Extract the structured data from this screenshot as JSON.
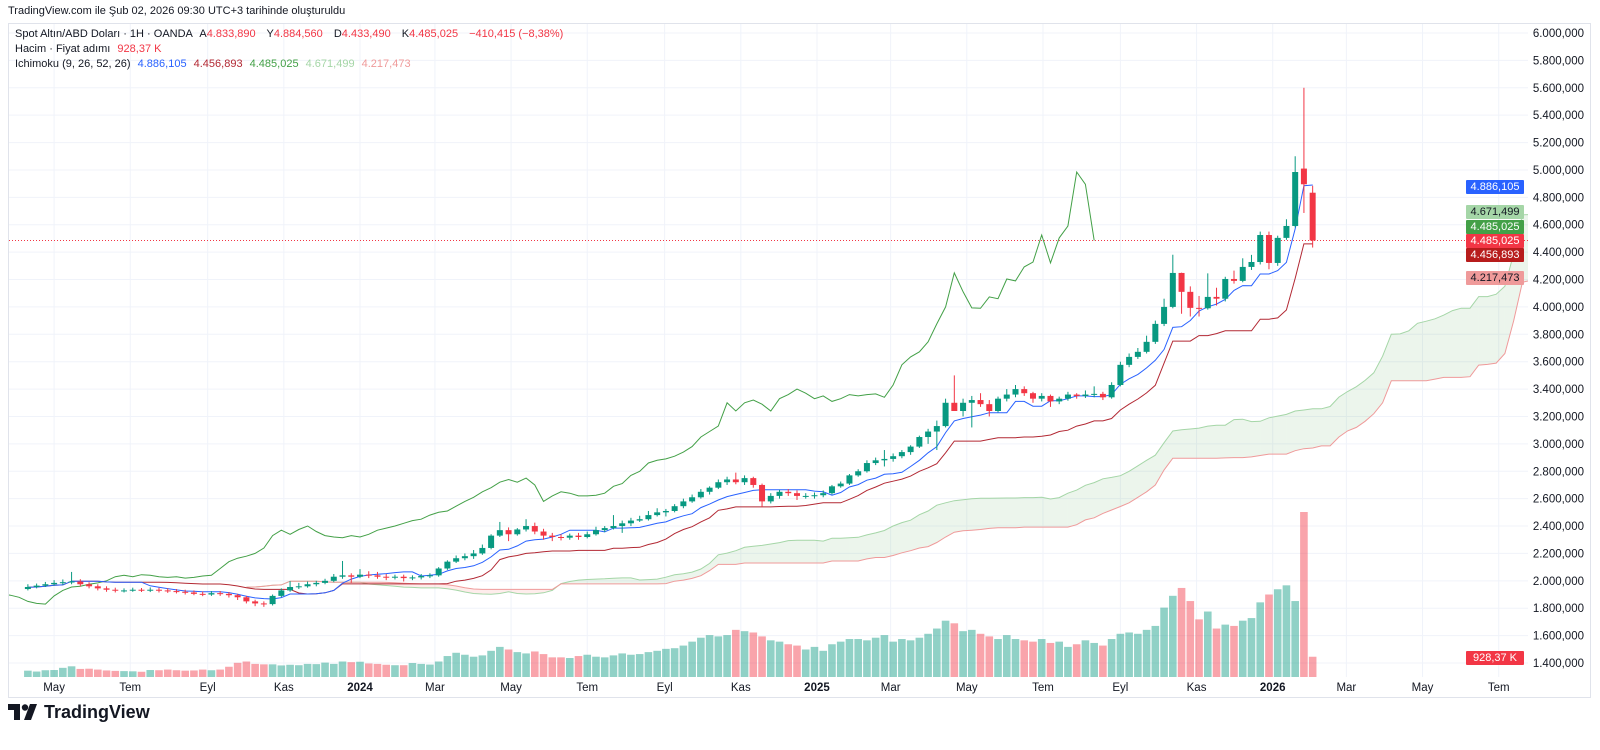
{
  "header": {
    "created": "TradingView.com ile Şub 02, 2026 09:30 UTC+3 tarihinde oluşturuldu"
  },
  "legend": {
    "symbol": "Spot Altın/ABD Doları · 1H · OANDA",
    "open_label": "A",
    "open": "4.833,890",
    "high_label": "Y",
    "high": "4.884,560",
    "low_label": "D",
    "low": "4.433,490",
    "close_label": "K",
    "close": "4.485,025",
    "change": "−410,415 (−8,38%)",
    "volume_name": "Hacim · Fiyat adımı",
    "volume_value": "928,37 K",
    "ichimoku_name": "Ichimoku (9, 26, 52, 26)",
    "ichimoku_values": [
      "4.886,105",
      "4.456,893",
      "4.485,025",
      "4.671,499",
      "4.217,473"
    ]
  },
  "price_labels": {
    "tenkan": "4.886,105",
    "span_a": "4.671,499",
    "chikou": "4.485,025",
    "last_price": "4.485,025",
    "kijun": "4.456,893",
    "span_b": "4.217,473",
    "volume": "928,37 K"
  },
  "colors": {
    "up": "#089981",
    "down": "#f23645",
    "tenkan": "#2962ff",
    "kijun": "#b22833",
    "chikou": "#43a047",
    "span_a": "#a5d6a7",
    "span_b": "#ef9a9a",
    "price_line": "#f23645"
  },
  "branding": {
    "logo_text": "TradingView"
  },
  "chart_data": {
    "type": "candlestick",
    "title": "Spot Altın/ABD Doları · 1H · OANDA",
    "start_date": "2023-04-10",
    "bar_interval_days": 7,
    "ylim": [
      1400,
      6000
    ],
    "y_ticks": [
      6000,
      5800,
      5600,
      5400,
      5200,
      5000,
      4800,
      4600,
      4400,
      4200,
      4000,
      3800,
      3600,
      3400,
      3200,
      3000,
      2800,
      2600,
      2400,
      2200,
      2000,
      1800,
      1600,
      1400
    ],
    "y_tick_labels": [
      "6.000,000",
      "5.800,000",
      "5.600,000",
      "5.400,000",
      "5.200,000",
      "5.000,000",
      "4.800,000",
      "4.600,000",
      "4.400,000",
      "4.200,000",
      "4.000,000",
      "3.800,000",
      "3.600,000",
      "3.400,000",
      "3.200,000",
      "3.000,000",
      "2.800,000",
      "2.600,000",
      "2.400,000",
      "2.200,000",
      "2.000,000",
      "1.800,000",
      "1.600,000",
      "1.400,000"
    ],
    "x_ticks": [
      {
        "label": "May",
        "date": "2023-05-01"
      },
      {
        "label": "Tem",
        "date": "2023-07-01"
      },
      {
        "label": "Eyl",
        "date": "2023-09-01"
      },
      {
        "label": "Kas",
        "date": "2023-11-01"
      },
      {
        "label": "2024",
        "date": "2024-01-01",
        "bold": true
      },
      {
        "label": "Mar",
        "date": "2024-03-01"
      },
      {
        "label": "May",
        "date": "2024-05-01"
      },
      {
        "label": "Tem",
        "date": "2024-07-01"
      },
      {
        "label": "Eyl",
        "date": "2024-09-01"
      },
      {
        "label": "Kas",
        "date": "2024-11-01"
      },
      {
        "label": "2025",
        "date": "2025-01-01",
        "bold": true
      },
      {
        "label": "Mar",
        "date": "2025-03-01"
      },
      {
        "label": "May",
        "date": "2025-05-01"
      },
      {
        "label": "Tem",
        "date": "2025-07-01"
      },
      {
        "label": "Eyl",
        "date": "2025-09-01"
      },
      {
        "label": "Kas",
        "date": "2025-11-01"
      },
      {
        "label": "2026",
        "date": "2026-01-01",
        "bold": true
      },
      {
        "label": "Mar",
        "date": "2026-03-01"
      },
      {
        "label": "May",
        "date": "2026-05-01"
      },
      {
        "label": "Tem",
        "date": "2026-07-01"
      }
    ],
    "last_price": 4485.025,
    "indicators": {
      "ichimoku": {
        "conversion": 9,
        "base": 26,
        "lagging_span_2": 52,
        "displacement": 26
      }
    },
    "ohlc": [
      [
        1940,
        1975,
        1930,
        1955
      ],
      [
        1955,
        1980,
        1945,
        1965
      ],
      [
        1965,
        1992,
        1955,
        1975
      ],
      [
        1975,
        2005,
        1965,
        1985
      ],
      [
        1985,
        2010,
        1970,
        1990
      ],
      [
        1990,
        2065,
        1975,
        1995
      ],
      [
        1995,
        2012,
        1960,
        1975
      ],
      [
        1975,
        1990,
        1945,
        1960
      ],
      [
        1960,
        1975,
        1930,
        1945
      ],
      [
        1945,
        1960,
        1920,
        1935
      ],
      [
        1935,
        1950,
        1915,
        1930
      ],
      [
        1930,
        1945,
        1915,
        1930
      ],
      [
        1930,
        1950,
        1920,
        1935
      ],
      [
        1935,
        1948,
        1918,
        1930
      ],
      [
        1930,
        1952,
        1918,
        1935
      ],
      [
        1935,
        1950,
        1915,
        1930
      ],
      [
        1930,
        1945,
        1912,
        1925
      ],
      [
        1925,
        1940,
        1908,
        1920
      ],
      [
        1920,
        1935,
        1900,
        1915
      ],
      [
        1915,
        1930,
        1895,
        1905
      ],
      [
        1905,
        1922,
        1888,
        1900
      ],
      [
        1900,
        1925,
        1890,
        1910
      ],
      [
        1910,
        1925,
        1890,
        1905
      ],
      [
        1905,
        1918,
        1878,
        1895
      ],
      [
        1895,
        1905,
        1860,
        1880
      ],
      [
        1880,
        1890,
        1835,
        1850
      ],
      [
        1850,
        1862,
        1815,
        1835
      ],
      [
        1835,
        1850,
        1810,
        1830
      ],
      [
        1830,
        1900,
        1820,
        1890
      ],
      [
        1890,
        1945,
        1880,
        1930
      ],
      [
        1930,
        1998,
        1920,
        1955
      ],
      [
        1955,
        1985,
        1940,
        1960
      ],
      [
        1960,
        1995,
        1950,
        1975
      ],
      [
        1975,
        2000,
        1960,
        1985
      ],
      [
        1985,
        2015,
        1975,
        2000
      ],
      [
        2000,
        2050,
        1990,
        2030
      ],
      [
        2030,
        2145,
        2015,
        2040
      ],
      [
        2040,
        2055,
        1985,
        2030
      ],
      [
        2030,
        2085,
        2020,
        2045
      ],
      [
        2045,
        2070,
        2020,
        2040
      ],
      [
        2040,
        2065,
        2015,
        2030
      ],
      [
        2030,
        2050,
        2005,
        2025
      ],
      [
        2025,
        2045,
        2010,
        2030
      ],
      [
        2030,
        2045,
        1995,
        2020
      ],
      [
        2020,
        2040,
        2005,
        2025
      ],
      [
        2025,
        2050,
        2010,
        2035
      ],
      [
        2035,
        2055,
        2020,
        2040
      ],
      [
        2040,
        2100,
        2030,
        2090
      ],
      [
        2090,
        2150,
        2080,
        2140
      ],
      [
        2140,
        2185,
        2130,
        2165
      ],
      [
        2165,
        2200,
        2150,
        2180
      ],
      [
        2180,
        2225,
        2160,
        2200
      ],
      [
        2200,
        2265,
        2190,
        2240
      ],
      [
        2240,
        2340,
        2230,
        2330
      ],
      [
        2330,
        2430,
        2320,
        2370
      ],
      [
        2370,
        2390,
        2290,
        2340
      ],
      [
        2340,
        2385,
        2330,
        2375
      ],
      [
        2375,
        2450,
        2360,
        2400
      ],
      [
        2400,
        2425,
        2340,
        2360
      ],
      [
        2360,
        2380,
        2300,
        2330
      ],
      [
        2330,
        2350,
        2290,
        2320
      ],
      [
        2320,
        2340,
        2295,
        2315
      ],
      [
        2315,
        2345,
        2300,
        2330
      ],
      [
        2330,
        2350,
        2300,
        2320
      ],
      [
        2320,
        2360,
        2310,
        2340
      ],
      [
        2340,
        2395,
        2330,
        2370
      ],
      [
        2370,
        2400,
        2355,
        2385
      ],
      [
        2385,
        2480,
        2375,
        2400
      ],
      [
        2400,
        2440,
        2350,
        2420
      ],
      [
        2420,
        2460,
        2400,
        2440
      ],
      [
        2440,
        2475,
        2430,
        2450
      ],
      [
        2450,
        2510,
        2440,
        2480
      ],
      [
        2480,
        2530,
        2470,
        2500
      ],
      [
        2500,
        2525,
        2470,
        2510
      ],
      [
        2510,
        2560,
        2500,
        2545
      ],
      [
        2545,
        2600,
        2530,
        2580
      ],
      [
        2580,
        2630,
        2570,
        2610
      ],
      [
        2610,
        2670,
        2600,
        2650
      ],
      [
        2650,
        2690,
        2630,
        2680
      ],
      [
        2680,
        2740,
        2670,
        2720
      ],
      [
        2720,
        2760,
        2700,
        2740
      ],
      [
        2740,
        2790,
        2705,
        2720
      ],
      [
        2720,
        2770,
        2700,
        2750
      ],
      [
        2750,
        2760,
        2680,
        2700
      ],
      [
        2700,
        2710,
        2540,
        2580
      ],
      [
        2580,
        2640,
        2565,
        2620
      ],
      [
        2620,
        2665,
        2600,
        2650
      ],
      [
        2650,
        2670,
        2620,
        2640
      ],
      [
        2640,
        2660,
        2590,
        2620
      ],
      [
        2620,
        2640,
        2600,
        2620
      ],
      [
        2620,
        2645,
        2600,
        2625
      ],
      [
        2625,
        2660,
        2610,
        2640
      ],
      [
        2640,
        2700,
        2630,
        2690
      ],
      [
        2690,
        2725,
        2680,
        2710
      ],
      [
        2710,
        2780,
        2700,
        2770
      ],
      [
        2770,
        2815,
        2760,
        2800
      ],
      [
        2800,
        2880,
        2790,
        2860
      ],
      [
        2860,
        2900,
        2845,
        2880
      ],
      [
        2880,
        2955,
        2835,
        2890
      ],
      [
        2890,
        2930,
        2870,
        2910
      ],
      [
        2910,
        2955,
        2895,
        2940
      ],
      [
        2940,
        2990,
        2920,
        2980
      ],
      [
        2980,
        3060,
        2970,
        3050
      ],
      [
        3050,
        3110,
        3000,
        3090
      ],
      [
        3090,
        3170,
        2955,
        3130
      ],
      [
        3130,
        3330,
        3120,
        3300
      ],
      [
        3300,
        3500,
        3260,
        3240
      ],
      [
        3240,
        3330,
        3200,
        3300
      ],
      [
        3300,
        3350,
        3120,
        3320
      ],
      [
        3320,
        3370,
        3270,
        3290
      ],
      [
        3290,
        3320,
        3200,
        3240
      ],
      [
        3240,
        3345,
        3230,
        3330
      ],
      [
        3330,
        3400,
        3310,
        3360
      ],
      [
        3360,
        3430,
        3340,
        3400
      ],
      [
        3400,
        3420,
        3350,
        3370
      ],
      [
        3370,
        3380,
        3300,
        3330
      ],
      [
        3330,
        3370,
        3310,
        3350
      ],
      [
        3350,
        3360,
        3270,
        3310
      ],
      [
        3310,
        3345,
        3290,
        3330
      ],
      [
        3330,
        3380,
        3315,
        3360
      ],
      [
        3360,
        3370,
        3330,
        3350
      ],
      [
        3350,
        3390,
        3335,
        3360
      ],
      [
        3360,
        3420,
        3340,
        3365
      ],
      [
        3365,
        3380,
        3320,
        3340
      ],
      [
        3340,
        3450,
        3330,
        3430
      ],
      [
        3430,
        3600,
        3420,
        3577
      ],
      [
        3577,
        3660,
        3560,
        3635
      ],
      [
        3635,
        3700,
        3620,
        3672
      ],
      [
        3672,
        3790,
        3660,
        3745
      ],
      [
        3745,
        3900,
        3730,
        3876
      ],
      [
        3876,
        4060,
        3860,
        4000
      ],
      [
        4000,
        4381,
        3990,
        4248
      ],
      [
        4248,
        4250,
        3950,
        4110
      ],
      [
        4110,
        4150,
        3930,
        3993
      ],
      [
        3993,
        4080,
        3930,
        3990
      ],
      [
        3990,
        4245,
        3980,
        4073
      ],
      [
        4073,
        4140,
        4010,
        4060
      ],
      [
        4060,
        4220,
        4040,
        4204
      ],
      [
        4204,
        4265,
        4170,
        4190
      ],
      [
        4190,
        4355,
        4180,
        4292
      ],
      [
        4292,
        4380,
        4270,
        4328
      ],
      [
        4328,
        4550,
        4310,
        4525
      ],
      [
        4525,
        4550,
        4275,
        4321
      ],
      [
        4321,
        4520,
        4300,
        4504
      ],
      [
        4504,
        4640,
        4490,
        4591
      ],
      [
        4591,
        5100,
        4580,
        4985
      ],
      [
        5010,
        5600,
        4686,
        4895.44
      ],
      [
        4833.89,
        4884.56,
        4433.49,
        4485.025
      ]
    ],
    "volume_k": [
      290,
      250,
      310,
      320,
      420,
      490,
      370,
      380,
      340,
      300,
      280,
      270,
      260,
      240,
      320,
      310,
      340,
      310,
      290,
      300,
      340,
      310,
      340,
      470,
      650,
      710,
      600,
      580,
      580,
      530,
      560,
      540,
      600,
      590,
      660,
      600,
      710,
      680,
      700,
      620,
      600,
      560,
      540,
      540,
      640,
      600,
      570,
      710,
      960,
      1110,
      1020,
      930,
      990,
      1200,
      1380,
      1260,
      1140,
      1080,
      1170,
      1050,
      900,
      900,
      870,
      960,
      1020,
      930,
      900,
      990,
      1080,
      1020,
      1050,
      1140,
      1200,
      1290,
      1320,
      1440,
      1620,
      1800,
      1920,
      1860,
      1920,
      2160,
      2100,
      2040,
      1860,
      1680,
      1620,
      1500,
      1440,
      1260,
      1380,
      1200,
      1500,
      1620,
      1740,
      1740,
      1680,
      1800,
      1920,
      1620,
      1740,
      1680,
      1800,
      1980,
      2220,
      2580,
      2460,
      2100,
      2160,
      1980,
      1860,
      1740,
      1920,
      1740,
      1680,
      1620,
      1740,
      1560,
      1620,
      1380,
      1500,
      1680,
      1560,
      1440,
      1740,
      1980,
      2040,
      1980,
      2160,
      2340,
      3180,
      3720,
      4080,
      3480,
      2640,
      3000,
      2220,
      2400,
      2340,
      2580,
      2700,
      3420,
      3780,
      4020,
      4200,
      3480,
      7560,
      928.37
    ]
  }
}
